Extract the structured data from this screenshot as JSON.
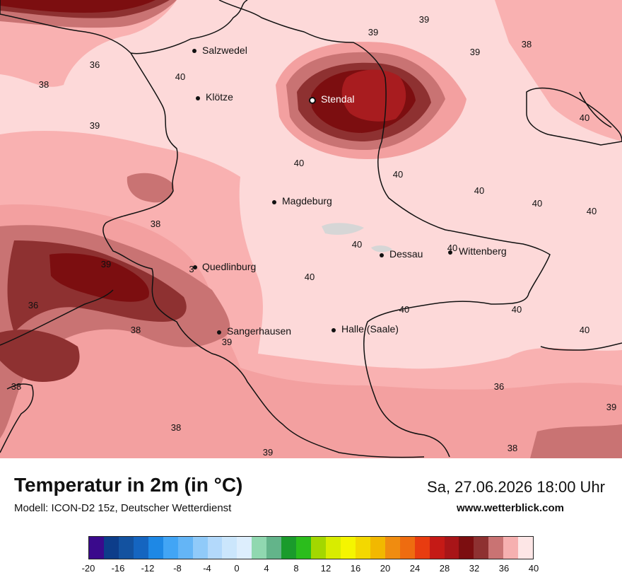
{
  "map": {
    "colors": {
      "background": "#fdd9d9",
      "t38": "#f9b1b1",
      "t37": "#f3a0a0",
      "t36": "#c97373",
      "t34": "#8e3131",
      "t33": "#7c0e10",
      "t32": "#a81c1f",
      "dots": "#d6d6d6"
    },
    "cities": [
      {
        "name": "Salzwedel"
      },
      {
        "name": "Klötze"
      },
      {
        "name": "Stendal"
      },
      {
        "name": "Magdeburg"
      },
      {
        "name": "Dessau"
      },
      {
        "name": "Wittenberg"
      },
      {
        "name": "Quedlinburg"
      },
      {
        "name": "Sangerhausen"
      },
      {
        "name": "Halle (Saale)"
      }
    ],
    "values": [
      "39",
      "39",
      "38",
      "39",
      "36",
      "40",
      "38",
      "39",
      "40",
      "40",
      "40",
      "40",
      "40",
      "40",
      "40",
      "38",
      "39",
      "40",
      "36",
      "40",
      "40",
      "40",
      "38",
      "39",
      "40",
      "38",
      "36",
      "39",
      "38",
      "39",
      "38",
      "3"
    ]
  },
  "footer": {
    "title": "Temperatur in 2m (in °C)",
    "model": "Modell: ICON-D2 15z, Deutscher Wetterdienst",
    "datetime": "Sa, 27.06.2026 18:00 Uhr",
    "site": "www.wetterblick.com"
  },
  "colorbar": {
    "colors": [
      "#3a0a8c",
      "#0d3d8a",
      "#1352a0",
      "#1565c0",
      "#1e88e5",
      "#42a5f5",
      "#64b5f6",
      "#90caf9",
      "#b3d9fb",
      "#cbe6fc",
      "#ddeefd",
      "#90d8b0",
      "#63b48a",
      "#1a9b2c",
      "#2bbd1c",
      "#a3d700",
      "#d8ec00",
      "#f5f500",
      "#f3d800",
      "#f2b800",
      "#f08c10",
      "#ee6c10",
      "#e83c10",
      "#c51a16",
      "#a81518",
      "#7c0e10",
      "#8e3131",
      "#c97373",
      "#f6b0b0",
      "#fde6e6"
    ],
    "labels": [
      "-20",
      "-16",
      "-12",
      "-8",
      "-4",
      "0",
      "4",
      "8",
      "12",
      "16",
      "20",
      "24",
      "28",
      "32",
      "36",
      "40"
    ]
  }
}
